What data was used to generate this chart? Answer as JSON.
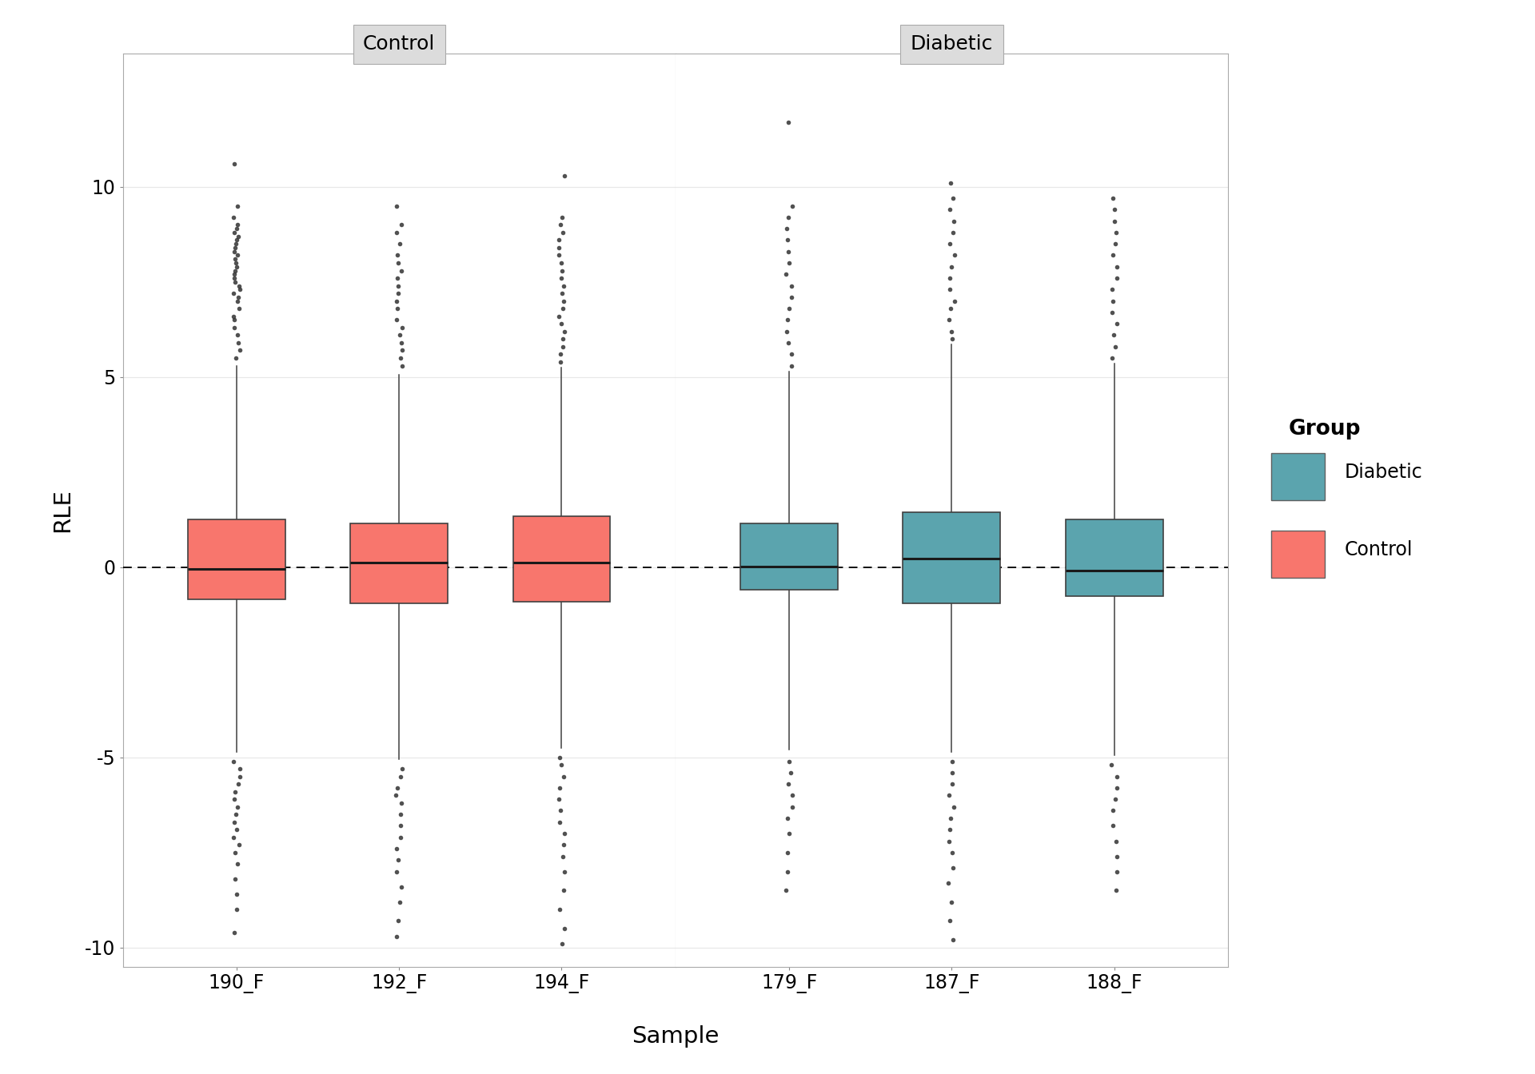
{
  "panels": [
    "Control",
    "Diabetic"
  ],
  "samples": {
    "Control": [
      "190_F",
      "192_F",
      "194_F"
    ],
    "Diabetic": [
      "179_F",
      "187_F",
      "188_F"
    ]
  },
  "colors": {
    "Control": "#F8766D",
    "Diabetic": "#619CFF"
  },
  "box_stats": {
    "190_F": {
      "q1": -0.85,
      "median": -0.05,
      "q3": 1.25,
      "whisker_lo": -4.85,
      "whisker_hi": 5.3
    },
    "192_F": {
      "q1": -0.95,
      "median": 0.12,
      "q3": 1.15,
      "whisker_lo": -5.05,
      "whisker_hi": 5.05
    },
    "194_F": {
      "q1": -0.9,
      "median": 0.12,
      "q3": 1.35,
      "whisker_lo": -4.75,
      "whisker_hi": 5.25
    },
    "179_F": {
      "q1": -0.6,
      "median": 0.02,
      "q3": 1.15,
      "whisker_lo": -4.8,
      "whisker_hi": 5.15
    },
    "187_F": {
      "q1": -0.95,
      "median": 0.22,
      "q3": 1.45,
      "whisker_lo": -4.85,
      "whisker_hi": 5.85
    },
    "188_F": {
      "q1": -0.75,
      "median": -0.08,
      "q3": 1.25,
      "whisker_lo": -4.95,
      "whisker_hi": 5.35
    }
  },
  "outliers": {
    "190_F": {
      "hi": [
        5.5,
        5.7,
        5.9,
        6.1,
        6.3,
        6.5,
        6.6,
        6.8,
        7.0,
        7.1,
        7.2,
        7.3,
        7.4,
        7.5,
        7.6,
        7.7,
        7.8,
        7.9,
        8.0,
        8.1,
        8.2,
        8.3,
        8.4,
        8.5,
        8.6,
        8.7,
        8.8,
        8.9,
        9.0,
        9.2,
        9.5,
        10.6
      ],
      "lo": [
        -5.1,
        -5.3,
        -5.5,
        -5.7,
        -5.9,
        -6.1,
        -6.3,
        -6.5,
        -6.7,
        -6.9,
        -7.1,
        -7.3,
        -7.5,
        -7.8,
        -8.2,
        -8.6,
        -9.0,
        -9.6
      ]
    },
    "192_F": {
      "hi": [
        5.3,
        5.5,
        5.7,
        5.9,
        6.1,
        6.3,
        6.5,
        6.8,
        7.0,
        7.2,
        7.4,
        7.6,
        7.8,
        8.0,
        8.2,
        8.5,
        8.8,
        9.0,
        9.5
      ],
      "lo": [
        -5.3,
        -5.5,
        -5.8,
        -6.0,
        -6.2,
        -6.5,
        -6.8,
        -7.1,
        -7.4,
        -7.7,
        -8.0,
        -8.4,
        -8.8,
        -9.3,
        -9.7
      ]
    },
    "194_F": {
      "hi": [
        5.4,
        5.6,
        5.8,
        6.0,
        6.2,
        6.4,
        6.6,
        6.8,
        7.0,
        7.2,
        7.4,
        7.6,
        7.8,
        8.0,
        8.2,
        8.4,
        8.6,
        8.8,
        9.0,
        9.2,
        10.3
      ],
      "lo": [
        -5.0,
        -5.2,
        -5.5,
        -5.8,
        -6.1,
        -6.4,
        -6.7,
        -7.0,
        -7.3,
        -7.6,
        -8.0,
        -8.5,
        -9.0,
        -9.5,
        -9.9
      ]
    },
    "179_F": {
      "hi": [
        5.3,
        5.6,
        5.9,
        6.2,
        6.5,
        6.8,
        7.1,
        7.4,
        7.7,
        8.0,
        8.3,
        8.6,
        8.9,
        9.2,
        9.5,
        11.7
      ],
      "lo": [
        -5.1,
        -5.4,
        -5.7,
        -6.0,
        -6.3,
        -6.6,
        -7.0,
        -7.5,
        -8.0,
        -8.5
      ]
    },
    "187_F": {
      "hi": [
        6.0,
        6.2,
        6.5,
        6.8,
        7.0,
        7.3,
        7.6,
        7.9,
        8.2,
        8.5,
        8.8,
        9.1,
        9.4,
        9.7,
        10.1
      ],
      "lo": [
        -5.1,
        -5.4,
        -5.7,
        -6.0,
        -6.3,
        -6.6,
        -6.9,
        -7.2,
        -7.5,
        -7.9,
        -8.3,
        -8.8,
        -9.3,
        -9.8
      ]
    },
    "188_F": {
      "hi": [
        5.5,
        5.8,
        6.1,
        6.4,
        6.7,
        7.0,
        7.3,
        7.6,
        7.9,
        8.2,
        8.5,
        8.8,
        9.1,
        9.4,
        9.7
      ],
      "lo": [
        -5.2,
        -5.5,
        -5.8,
        -6.1,
        -6.4,
        -6.8,
        -7.2,
        -7.6,
        -8.0,
        -8.5
      ]
    }
  },
  "ylim": [
    -10.5,
    13.5
  ],
  "yticks": [
    -10,
    -5,
    0,
    5,
    10
  ],
  "ylabel": "RLE",
  "xlabel": "Sample",
  "panel_header_bg": "#DCDCDC",
  "plot_bg": "#FFFFFF",
  "panel_bg": "#FFFFFF",
  "grid_color": "#E8E8E8",
  "outer_bg": "#FFFFFF",
  "legend_title": "Group",
  "legend_entries": [
    "Diabetic",
    "Control"
  ],
  "box_colors": {
    "Control": "#F8766D",
    "Diabetic": "#5BA4AE"
  }
}
